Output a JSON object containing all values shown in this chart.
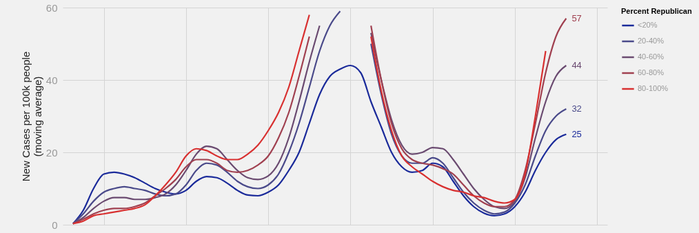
{
  "chart_data": {
    "type": "line",
    "ylabel": "New Cases per 100k people\n(moving average)",
    "legend_title": "Percent Republican",
    "categories": [
      null,
      null,
      null,
      null,
      null,
      null,
      null,
      null,
      null,
      null,
      null,
      null,
      null,
      null,
      null,
      null,
      null,
      null,
      null,
      null,
      null,
      null,
      null,
      null,
      null,
      null,
      null,
      null,
      null,
      null,
      null,
      null,
      null,
      null,
      null,
      null,
      null,
      null,
      null,
      null,
      null,
      null,
      null,
      null,
      null,
      null,
      null,
      null,
      null
    ],
    "ylim": [
      0,
      60
    ],
    "yticks": [
      0,
      20,
      40,
      60
    ],
    "grid": true,
    "legend": "right",
    "marker": "none",
    "line_style": "solid",
    "series": [
      {
        "name": "<20%",
        "color": "#1a2a9a",
        "values": [
          0.3,
          4,
          10,
          14,
          14.5,
          14,
          13,
          11.5,
          10,
          9,
          8.5,
          9.5,
          12,
          13.3,
          13,
          11.5,
          9.5,
          8.2,
          8,
          9,
          11,
          15,
          20,
          28,
          36,
          41,
          43,
          44,
          42,
          34,
          27,
          20,
          16,
          14.5,
          15,
          17,
          16,
          12,
          8,
          5,
          3.2,
          2.5,
          3,
          5,
          9,
          15,
          20,
          23.5,
          25
        ],
        "value_labels": [
          null,
          null,
          null,
          null,
          null,
          null,
          null,
          null,
          null,
          null,
          null,
          null,
          null,
          null,
          null,
          null,
          null,
          null,
          null,
          null,
          null,
          null,
          null,
          null,
          null,
          null,
          null,
          null,
          null,
          null,
          null,
          null,
          null,
          null,
          null,
          null,
          null,
          null,
          null,
          null,
          null,
          null,
          null,
          null,
          null,
          null,
          null,
          null,
          "25"
        ]
      },
      {
        "name": "20-40%",
        "color": "#4a4a8a",
        "values": [
          0.3,
          3,
          6.5,
          9,
          10,
          10.5,
          10,
          9.5,
          8.5,
          8,
          8.5,
          11,
          15,
          17,
          16.5,
          14.5,
          12,
          10.5,
          10,
          11,
          14,
          20,
          28,
          38,
          48,
          55,
          59,
          null,
          null,
          50,
          36,
          25,
          19,
          17,
          17,
          18.5,
          17,
          13,
          9,
          6,
          4,
          3,
          3.5,
          6,
          11,
          19,
          26,
          30,
          32
        ],
        "value_labels": [
          null,
          null,
          null,
          null,
          null,
          null,
          null,
          null,
          null,
          null,
          null,
          null,
          null,
          null,
          null,
          null,
          null,
          null,
          null,
          null,
          null,
          null,
          null,
          null,
          null,
          null,
          null,
          null,
          null,
          null,
          null,
          null,
          null,
          null,
          null,
          null,
          null,
          null,
          null,
          null,
          null,
          null,
          null,
          null,
          null,
          null,
          null,
          null,
          "32"
        ]
      },
      {
        "name": "40-60%",
        "color": "#6a4a70",
        "values": [
          0.3,
          2,
          4.5,
          6.5,
          7.5,
          7.5,
          7,
          7,
          7.5,
          8.5,
          11,
          15,
          19.5,
          21.7,
          21,
          18,
          15,
          13,
          12.5,
          13.5,
          17,
          24,
          34,
          45,
          55,
          null,
          null,
          null,
          null,
          53,
          40,
          29,
          22,
          19.5,
          20,
          21.3,
          21,
          18,
          14,
          10,
          7,
          5,
          4.5,
          6.5,
          13,
          24,
          34,
          41,
          44
        ],
        "value_labels": [
          null,
          null,
          null,
          null,
          null,
          null,
          null,
          null,
          null,
          null,
          null,
          null,
          null,
          null,
          null,
          null,
          null,
          null,
          null,
          null,
          null,
          null,
          null,
          null,
          null,
          null,
          null,
          null,
          null,
          null,
          null,
          null,
          null,
          null,
          null,
          null,
          null,
          null,
          null,
          null,
          null,
          null,
          null,
          null,
          null,
          null,
          null,
          null,
          "44"
        ]
      },
      {
        "name": "60-80%",
        "color": "#a04050",
        "values": [
          0.3,
          1.5,
          3,
          4,
          4.5,
          4.5,
          5,
          6,
          8,
          10,
          12.5,
          16,
          18,
          18,
          17,
          15,
          14.5,
          15,
          16.5,
          19,
          24,
          31,
          41,
          52,
          null,
          null,
          null,
          null,
          null,
          55,
          40,
          28,
          21,
          18,
          17,
          16.5,
          15.5,
          14,
          11,
          8,
          6,
          5,
          5,
          7,
          15,
          28,
          42,
          52,
          57
        ],
        "value_labels": [
          null,
          null,
          null,
          null,
          null,
          null,
          null,
          null,
          null,
          null,
          null,
          null,
          null,
          null,
          null,
          null,
          null,
          null,
          null,
          null,
          null,
          null,
          null,
          null,
          null,
          null,
          null,
          null,
          null,
          null,
          null,
          null,
          null,
          null,
          null,
          null,
          null,
          null,
          null,
          null,
          null,
          null,
          null,
          null,
          null,
          null,
          null,
          null,
          "57"
        ]
      },
      {
        "name": "80-100%",
        "color": "#d83030",
        "values": [
          0.3,
          1,
          2.5,
          3,
          3.5,
          4,
          4.5,
          5.5,
          8,
          11,
          14.5,
          19,
          21,
          20.5,
          19,
          18,
          18,
          19.5,
          22,
          26,
          31,
          38,
          48,
          58,
          null,
          null,
          null,
          null,
          null,
          52,
          37,
          26,
          19,
          16,
          14,
          12,
          10.5,
          9.5,
          9,
          8,
          7.5,
          6.5,
          6,
          7,
          14,
          30,
          48,
          null,
          null
        ]
      }
    ]
  }
}
